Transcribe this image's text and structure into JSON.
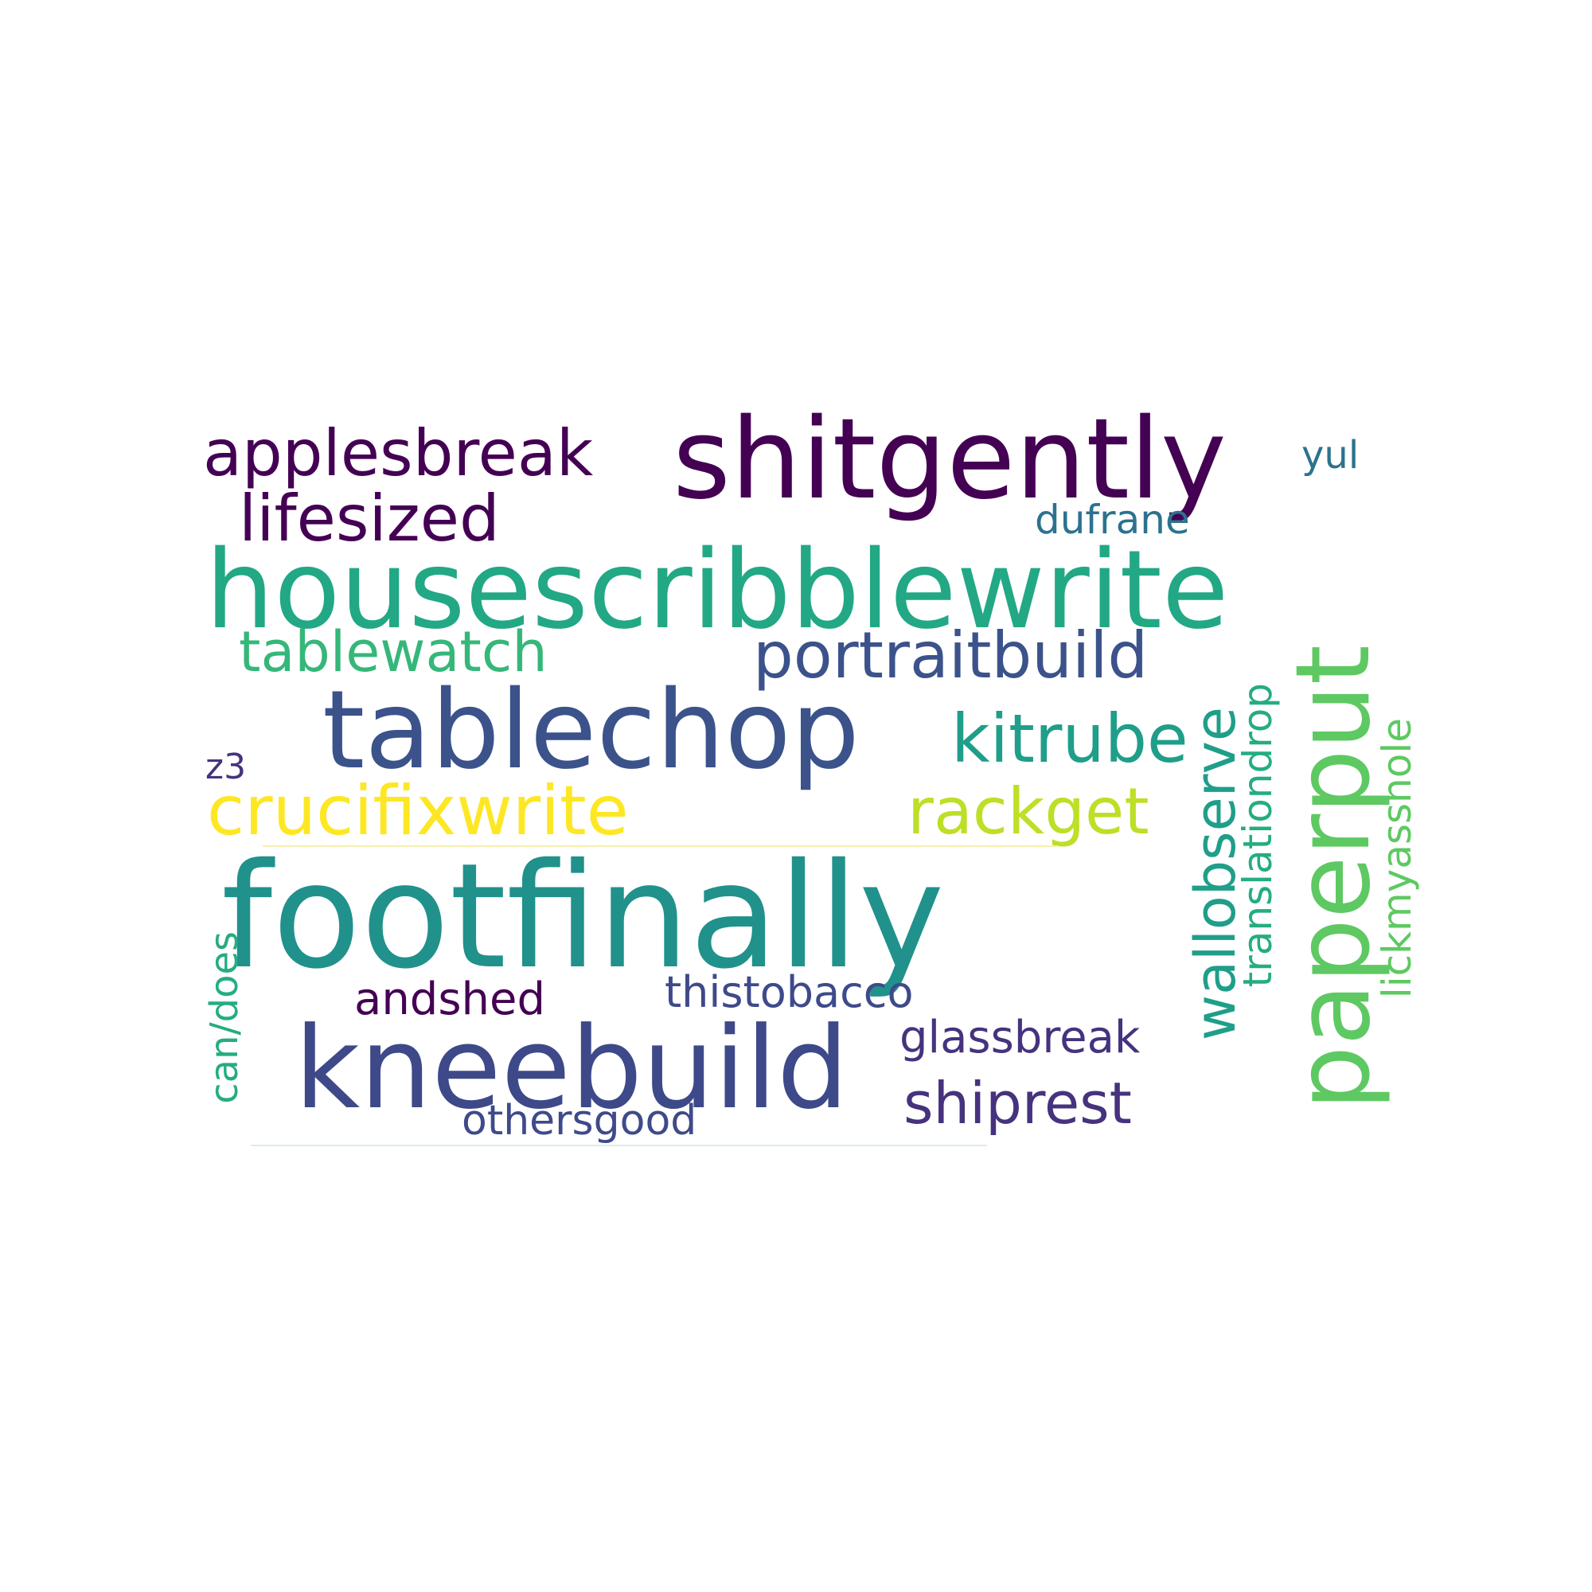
{
  "words": [
    {
      "text": "shitgently",
      "color": "#440154"
    },
    {
      "text": "applesbreak",
      "color": "#440154"
    },
    {
      "text": "yul",
      "color": "#2c728e"
    },
    {
      "text": "lifesized",
      "color": "#440154"
    },
    {
      "text": "dufrane",
      "color": "#2c728e"
    },
    {
      "text": "housescribblewrite",
      "color": "#22a884"
    },
    {
      "text": "tablewatch",
      "color": "#35b779"
    },
    {
      "text": "portraitbuild",
      "color": "#3b528b"
    },
    {
      "text": "tablechop",
      "color": "#3b528b"
    },
    {
      "text": "kitrube",
      "color": "#1f9e89"
    },
    {
      "text": "z3",
      "color": "#46327e"
    },
    {
      "text": "crucifixwrite",
      "color": "#fde725"
    },
    {
      "text": "rackget",
      "color": "#bddf26"
    },
    {
      "text": "footfinally",
      "color": "#21918c"
    },
    {
      "text": "andshed",
      "color": "#440154"
    },
    {
      "text": "thistobacco",
      "color": "#3e4a89"
    },
    {
      "text": "kneebuild",
      "color": "#3e4989"
    },
    {
      "text": "glassbreak",
      "color": "#46327e"
    },
    {
      "text": "shiprest",
      "color": "#46327e"
    },
    {
      "text": "othersgood",
      "color": "#3e4a89"
    },
    {
      "text": "wallobserve",
      "color": "#1f9e89"
    },
    {
      "text": "translationdrop",
      "color": "#25ac82"
    },
    {
      "text": "paperput",
      "color": "#5ec962"
    },
    {
      "text": "lickmyasshole",
      "color": "#5ec962"
    },
    {
      "text": "can/does",
      "color": "#25ac82"
    }
  ]
}
